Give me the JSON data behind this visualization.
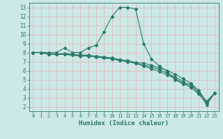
{
  "xlabel": "Humidex (Indice chaleur)",
  "xlim": [
    -0.5,
    23.5
  ],
  "ylim": [
    1.5,
    13.5
  ],
  "xticks": [
    0,
    1,
    2,
    3,
    4,
    5,
    6,
    7,
    8,
    9,
    10,
    11,
    12,
    13,
    14,
    15,
    16,
    17,
    18,
    19,
    20,
    21,
    22,
    23
  ],
  "yticks": [
    2,
    3,
    4,
    5,
    6,
    7,
    8,
    9,
    10,
    11,
    12,
    13
  ],
  "bg_color": "#cce8e8",
  "grid_color": "#e8b0b0",
  "line_color": "#2a7a6a",
  "line1_x": [
    0,
    1,
    2,
    3,
    4,
    5,
    6,
    7,
    8,
    9,
    10,
    11,
    12,
    13,
    14,
    15,
    16,
    17,
    18,
    19,
    20,
    21,
    22,
    23
  ],
  "line1_y": [
    8.0,
    8.0,
    8.0,
    8.0,
    8.5,
    8.0,
    8.0,
    8.5,
    8.8,
    10.3,
    12.0,
    13.0,
    13.0,
    12.8,
    9.0,
    7.3,
    6.5,
    5.9,
    5.0,
    4.5,
    4.5,
    3.5,
    2.2,
    3.5
  ],
  "line2_x": [
    0,
    1,
    2,
    3,
    4,
    5,
    6,
    7,
    8,
    9,
    10,
    11,
    12,
    13,
    14,
    15,
    16,
    17,
    18,
    19,
    20,
    21,
    22,
    23
  ],
  "line2_y": [
    8.0,
    8.0,
    7.8,
    7.8,
    7.8,
    7.7,
    7.7,
    7.6,
    7.5,
    7.4,
    7.3,
    7.2,
    7.1,
    6.9,
    6.8,
    6.6,
    6.3,
    6.0,
    5.6,
    5.1,
    4.6,
    3.8,
    2.5,
    3.5
  ],
  "line3_x": [
    0,
    1,
    2,
    3,
    4,
    5,
    6,
    7,
    8,
    9,
    10,
    11,
    12,
    13,
    14,
    15,
    16,
    17,
    18,
    19,
    20,
    21,
    22,
    23
  ],
  "line3_y": [
    8.0,
    8.0,
    7.8,
    7.8,
    7.8,
    7.7,
    7.6,
    7.6,
    7.5,
    7.4,
    7.3,
    7.1,
    7.0,
    6.8,
    6.6,
    6.4,
    6.1,
    5.7,
    5.3,
    4.8,
    4.3,
    3.6,
    2.6,
    3.5
  ],
  "line4_x": [
    0,
    1,
    2,
    3,
    4,
    5,
    6,
    7,
    8,
    9,
    10,
    11,
    12,
    13,
    14,
    15,
    16,
    17,
    18,
    19,
    20,
    21,
    22,
    23
  ],
  "line4_y": [
    8.0,
    8.0,
    7.8,
    7.8,
    7.9,
    7.8,
    7.7,
    7.7,
    7.6,
    7.5,
    7.4,
    7.2,
    7.0,
    6.8,
    6.5,
    6.2,
    5.9,
    5.5,
    5.1,
    4.6,
    4.1,
    3.4,
    2.4,
    3.5
  ]
}
